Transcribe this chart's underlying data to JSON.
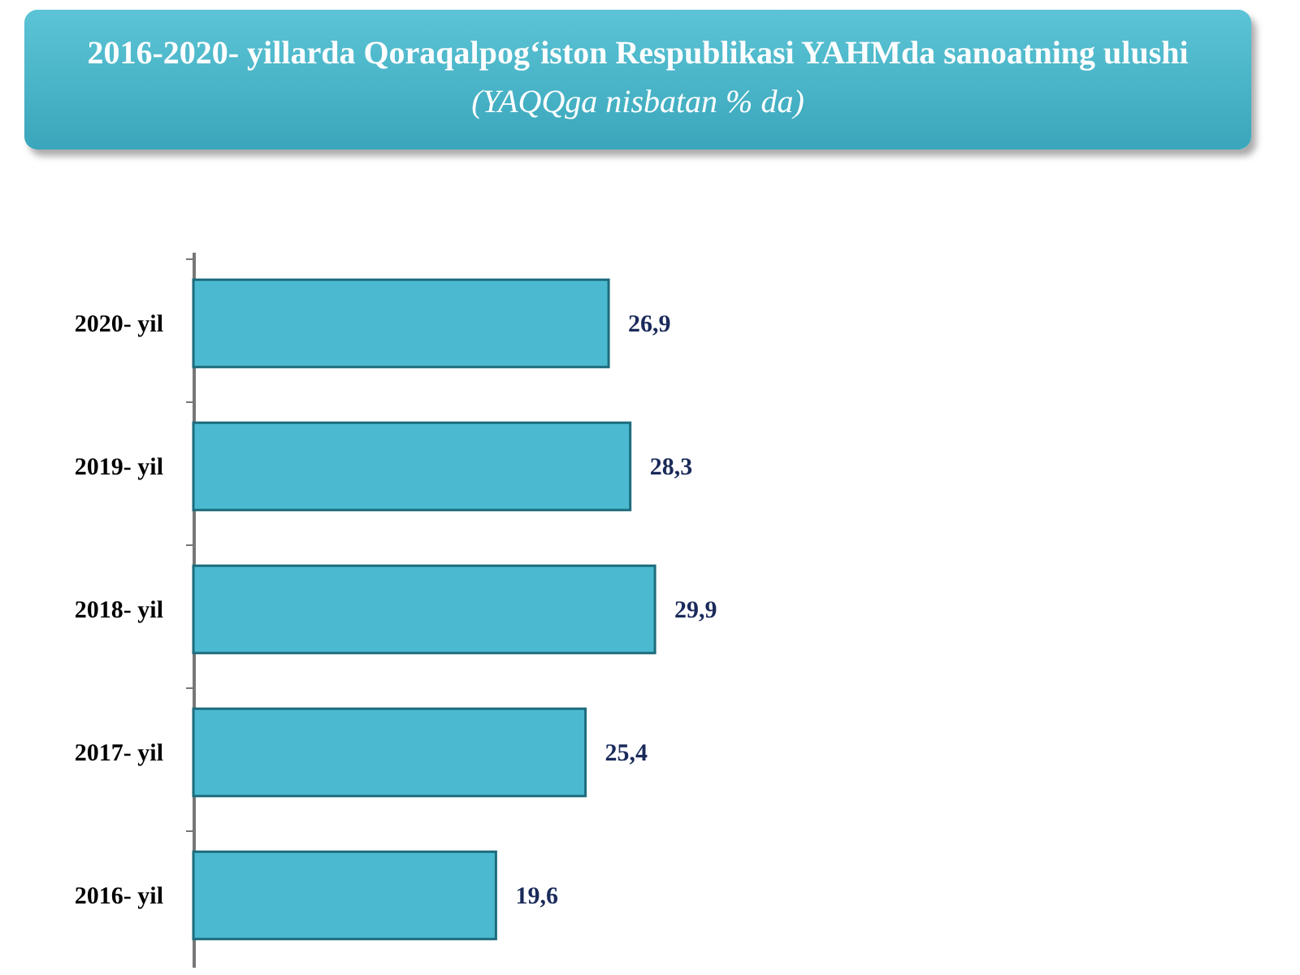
{
  "chart_data": {
    "type": "bar",
    "orientation": "horizontal",
    "title": "2016-2020- yillarda Qoraqalpog‘iston Respublikasi YAHMda sanoatning ulushi",
    "subtitle": "(YAQQga nisbatan % da)",
    "categories": [
      "2020- yil",
      "2019- yil",
      "2018- yil",
      "2017- yil",
      "2016- yil"
    ],
    "values": [
      26.9,
      28.3,
      29.9,
      25.4,
      19.6
    ],
    "value_labels": [
      "26,9",
      "28,3",
      "29,9",
      "25,4",
      "19,6"
    ],
    "color": "#4bbad0"
  }
}
